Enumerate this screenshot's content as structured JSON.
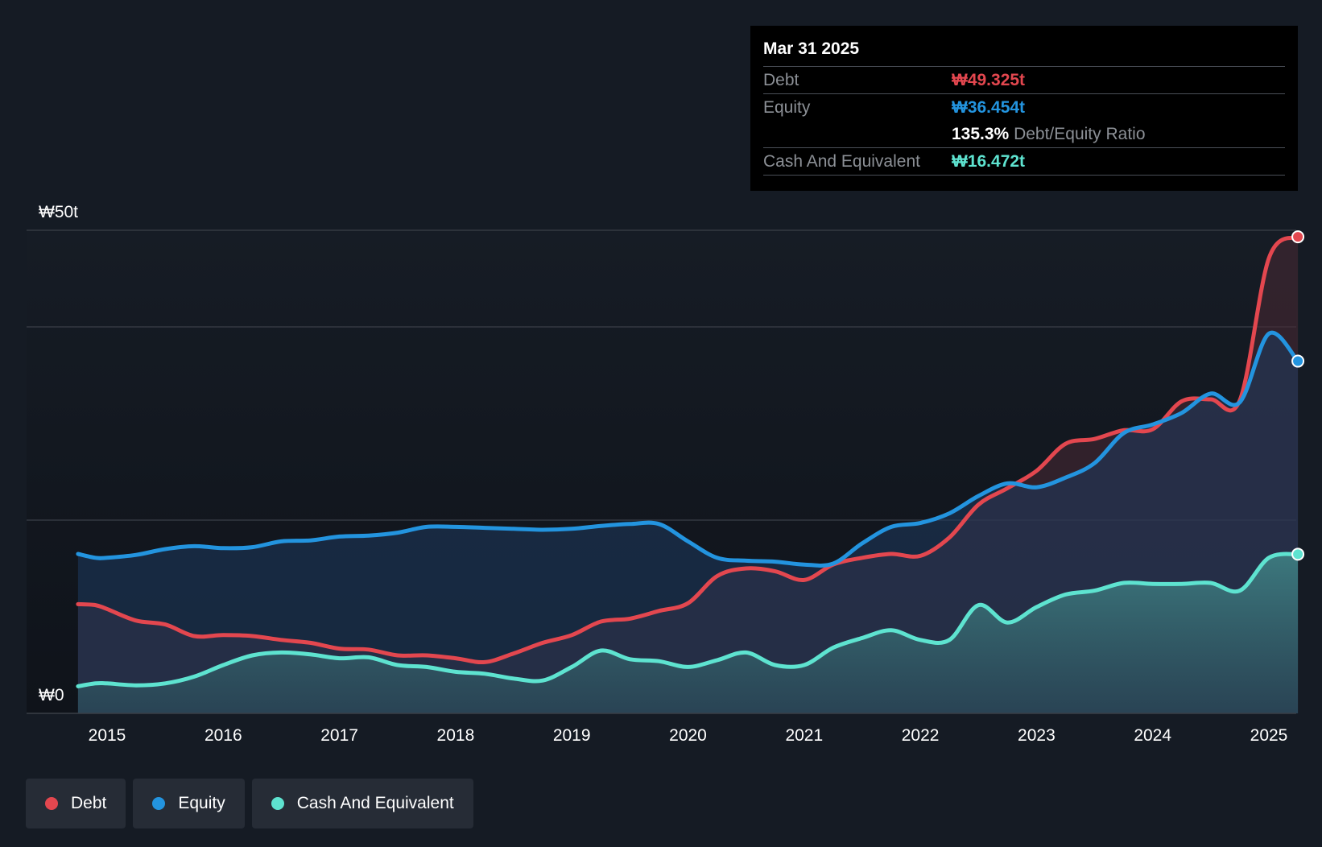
{
  "chart_data": {
    "type": "area",
    "title": "",
    "xlabel": "",
    "ylabel": "",
    "ylim": [
      0,
      50
    ],
    "y_tick_labels": [
      "₩0",
      "₩50t"
    ],
    "x_tick_labels": [
      "2015",
      "2016",
      "2017",
      "2018",
      "2019",
      "2020",
      "2021",
      "2022",
      "2023",
      "2024",
      "2025"
    ],
    "x_tick_values": [
      2015,
      2016,
      2017,
      2018,
      2019,
      2020,
      2021,
      2022,
      2023,
      2024,
      2025
    ],
    "xlim": [
      2014.6,
      2025.25
    ],
    "gridlines": [
      20,
      40,
      50
    ],
    "series": [
      {
        "name": "Equity",
        "color": "#2394df",
        "x": [
          2014.75,
          2014.9,
          2015.0,
          2015.25,
          2015.5,
          2015.75,
          2016.0,
          2016.25,
          2016.5,
          2016.75,
          2017.0,
          2017.25,
          2017.5,
          2017.75,
          2018.0,
          2018.25,
          2018.5,
          2018.75,
          2019.0,
          2019.25,
          2019.5,
          2019.75,
          2020.0,
          2020.25,
          2020.5,
          2020.75,
          2021.0,
          2021.25,
          2021.5,
          2021.75,
          2022.0,
          2022.25,
          2022.5,
          2022.75,
          2023.0,
          2023.25,
          2023.5,
          2023.75,
          2024.0,
          2024.25,
          2024.5,
          2024.75,
          2025.0,
          2025.25
        ],
        "values": [
          16.5,
          16.1,
          16.1,
          16.4,
          17.0,
          17.3,
          17.1,
          17.2,
          17.8,
          17.9,
          18.3,
          18.4,
          18.7,
          19.3,
          19.3,
          19.2,
          19.1,
          19.0,
          19.1,
          19.4,
          19.6,
          19.6,
          17.8,
          16.1,
          15.8,
          15.7,
          15.4,
          15.5,
          17.6,
          19.3,
          19.7,
          20.7,
          22.5,
          23.8,
          23.4,
          24.4,
          25.9,
          29.0,
          29.9,
          31.1,
          33.1,
          32.2,
          39.3,
          36.454
        ]
      },
      {
        "name": "Debt",
        "color": "#e3474f",
        "x": [
          2014.75,
          2014.9,
          2015.0,
          2015.25,
          2015.5,
          2015.75,
          2016.0,
          2016.25,
          2016.5,
          2016.75,
          2017.0,
          2017.25,
          2017.5,
          2017.75,
          2018.0,
          2018.25,
          2018.5,
          2018.75,
          2019.0,
          2019.25,
          2019.5,
          2019.75,
          2020.0,
          2020.25,
          2020.5,
          2020.75,
          2021.0,
          2021.25,
          2021.5,
          2021.75,
          2022.0,
          2022.25,
          2022.5,
          2022.75,
          2023.0,
          2023.25,
          2023.5,
          2023.75,
          2024.0,
          2024.25,
          2024.5,
          2024.75,
          2025.0,
          2025.25
        ],
        "values": [
          11.3,
          11.2,
          10.8,
          9.6,
          9.2,
          8.0,
          8.1,
          8.0,
          7.6,
          7.3,
          6.7,
          6.6,
          6.0,
          6.0,
          5.7,
          5.3,
          6.2,
          7.3,
          8.1,
          9.5,
          9.8,
          10.6,
          11.4,
          14.2,
          15.0,
          14.7,
          13.8,
          15.4,
          16.1,
          16.5,
          16.3,
          18.2,
          21.6,
          23.3,
          25.1,
          27.9,
          28.4,
          29.3,
          29.4,
          32.3,
          32.5,
          32.4,
          47.1,
          49.325
        ]
      },
      {
        "name": "Cash And Equivalent",
        "color": "#5ee3d0",
        "x": [
          2014.75,
          2014.9,
          2015.0,
          2015.25,
          2015.5,
          2015.75,
          2016.0,
          2016.25,
          2016.5,
          2016.75,
          2017.0,
          2017.25,
          2017.5,
          2017.75,
          2018.0,
          2018.25,
          2018.5,
          2018.75,
          2019.0,
          2019.25,
          2019.5,
          2019.75,
          2020.0,
          2020.25,
          2020.5,
          2020.75,
          2021.0,
          2021.25,
          2021.5,
          2021.75,
          2022.0,
          2022.25,
          2022.5,
          2022.75,
          2023.0,
          2023.25,
          2023.5,
          2023.75,
          2024.0,
          2024.25,
          2024.5,
          2024.75,
          2025.0,
          2025.25
        ],
        "values": [
          2.8,
          3.1,
          3.1,
          2.9,
          3.1,
          3.8,
          5.0,
          6.0,
          6.3,
          6.1,
          5.7,
          5.8,
          5.0,
          4.8,
          4.3,
          4.1,
          3.6,
          3.4,
          4.8,
          6.5,
          5.6,
          5.4,
          4.8,
          5.5,
          6.3,
          5.0,
          5.0,
          6.8,
          7.8,
          8.6,
          7.6,
          7.6,
          11.2,
          9.4,
          11.0,
          12.3,
          12.7,
          13.5,
          13.4,
          13.4,
          13.5,
          12.7,
          16.1,
          16.472
        ]
      }
    ]
  },
  "tooltip": {
    "date": "Mar 31 2025",
    "debt_label": "Debt",
    "debt_value": "₩49.325t",
    "equity_label": "Equity",
    "equity_value": "₩36.454t",
    "ratio_value": "135.3%",
    "ratio_label": "Debt/Equity Ratio",
    "cash_label": "Cash And Equivalent",
    "cash_value": "₩16.472t"
  },
  "legend": {
    "items": [
      {
        "label": "Debt",
        "color": "#e3474f"
      },
      {
        "label": "Equity",
        "color": "#2394df"
      },
      {
        "label": "Cash And Equivalent",
        "color": "#5ee3d0"
      }
    ]
  },
  "colors": {
    "background": "#151b24",
    "plot_background": "#10141b",
    "debt": "#e3474f",
    "equity": "#2394df",
    "cash": "#5ee3d0"
  }
}
